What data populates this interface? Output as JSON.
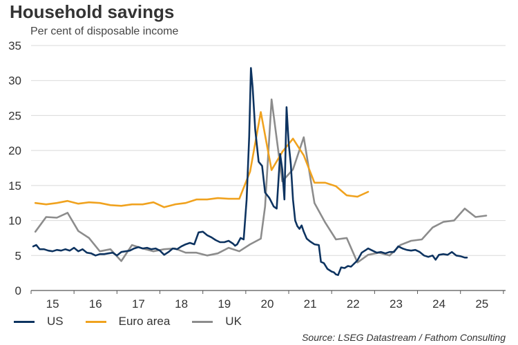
{
  "title": "Household savings",
  "subtitle": "Per cent of disposable income",
  "source": "Source: LSEG Datastream / Fathom Consulting",
  "chart_data": {
    "type": "line",
    "ylim": [
      0,
      35
    ],
    "yticks": [
      0,
      5,
      10,
      15,
      20,
      25,
      30,
      35
    ],
    "xlim": [
      2014.5,
      2025.55
    ],
    "xticks": [
      {
        "label": "15",
        "x": 2015.0
      },
      {
        "label": "16",
        "x": 2016.0
      },
      {
        "label": "17",
        "x": 2017.0
      },
      {
        "label": "18",
        "x": 2018.0
      },
      {
        "label": "19",
        "x": 2019.0
      },
      {
        "label": "20",
        "x": 2020.0
      },
      {
        "label": "21",
        "x": 2021.0
      },
      {
        "label": "22",
        "x": 2022.0
      },
      {
        "label": "23",
        "x": 2023.0
      },
      {
        "label": "24",
        "x": 2024.0
      },
      {
        "label": "25",
        "x": 2025.0
      }
    ],
    "grid": "horizontal",
    "legend_position": "bottom",
    "series": [
      {
        "name": "US",
        "color": "#0d3360",
        "points": [
          [
            2014.55,
            6.3
          ],
          [
            2014.62,
            6.5
          ],
          [
            2014.7,
            5.9
          ],
          [
            2014.8,
            5.9
          ],
          [
            2014.9,
            5.7
          ],
          [
            2015.0,
            5.6
          ],
          [
            2015.1,
            5.8
          ],
          [
            2015.2,
            5.7
          ],
          [
            2015.3,
            5.9
          ],
          [
            2015.4,
            5.7
          ],
          [
            2015.5,
            6.1
          ],
          [
            2015.6,
            5.6
          ],
          [
            2015.7,
            5.9
          ],
          [
            2015.8,
            5.4
          ],
          [
            2015.9,
            5.3
          ],
          [
            2016.0,
            5.0
          ],
          [
            2016.1,
            5.2
          ],
          [
            2016.2,
            5.2
          ],
          [
            2016.3,
            5.3
          ],
          [
            2016.4,
            5.4
          ],
          [
            2016.5,
            5.0
          ],
          [
            2016.6,
            5.5
          ],
          [
            2016.7,
            5.6
          ],
          [
            2016.8,
            5.7
          ],
          [
            2016.9,
            6.0
          ],
          [
            2017.0,
            6.2
          ],
          [
            2017.1,
            6.0
          ],
          [
            2017.2,
            6.1
          ],
          [
            2017.3,
            5.9
          ],
          [
            2017.4,
            6.0
          ],
          [
            2017.5,
            5.7
          ],
          [
            2017.6,
            5.1
          ],
          [
            2017.7,
            5.5
          ],
          [
            2017.8,
            6.0
          ],
          [
            2017.9,
            5.9
          ],
          [
            2018.0,
            6.3
          ],
          [
            2018.1,
            6.6
          ],
          [
            2018.2,
            6.8
          ],
          [
            2018.3,
            6.6
          ],
          [
            2018.4,
            8.3
          ],
          [
            2018.5,
            8.4
          ],
          [
            2018.6,
            7.9
          ],
          [
            2018.7,
            7.6
          ],
          [
            2018.8,
            7.2
          ],
          [
            2018.9,
            6.9
          ],
          [
            2019.0,
            6.9
          ],
          [
            2019.1,
            7.1
          ],
          [
            2019.2,
            6.7
          ],
          [
            2019.25,
            6.4
          ],
          [
            2019.3,
            6.6
          ],
          [
            2019.38,
            7.5
          ],
          [
            2019.45,
            7.3
          ],
          [
            2019.52,
            13.0
          ],
          [
            2019.58,
            22.0
          ],
          [
            2019.62,
            31.8
          ],
          [
            2019.66,
            29.0
          ],
          [
            2019.72,
            23.0
          ],
          [
            2019.8,
            18.4
          ],
          [
            2019.88,
            17.8
          ],
          [
            2019.95,
            14.0
          ],
          [
            2020.05,
            13.2
          ],
          [
            2020.15,
            12.0
          ],
          [
            2020.22,
            11.7
          ],
          [
            2020.3,
            19.5
          ],
          [
            2020.35,
            17.3
          ],
          [
            2020.4,
            13.0
          ],
          [
            2020.45,
            26.2
          ],
          [
            2020.5,
            21.0
          ],
          [
            2020.55,
            18.0
          ],
          [
            2020.6,
            13.0
          ],
          [
            2020.65,
            10.0
          ],
          [
            2020.7,
            9.2
          ],
          [
            2020.75,
            8.8
          ],
          [
            2020.8,
            9.3
          ],
          [
            2020.85,
            8.4
          ],
          [
            2020.92,
            7.4
          ],
          [
            2021.0,
            7.0
          ],
          [
            2021.1,
            6.6
          ],
          [
            2021.2,
            6.5
          ],
          [
            2021.25,
            4.1
          ],
          [
            2021.32,
            3.9
          ],
          [
            2021.4,
            3.1
          ],
          [
            2021.5,
            2.7
          ],
          [
            2021.55,
            2.6
          ],
          [
            2021.6,
            2.3
          ],
          [
            2021.65,
            2.2
          ],
          [
            2021.72,
            3.3
          ],
          [
            2021.8,
            3.2
          ],
          [
            2021.88,
            3.5
          ],
          [
            2021.95,
            3.4
          ],
          [
            2022.0,
            3.7
          ],
          [
            2022.1,
            4.3
          ],
          [
            2022.2,
            5.4
          ],
          [
            2022.3,
            5.8
          ],
          [
            2022.35,
            6.0
          ],
          [
            2022.45,
            5.7
          ],
          [
            2022.55,
            5.4
          ],
          [
            2022.65,
            5.5
          ],
          [
            2022.75,
            5.3
          ],
          [
            2022.85,
            5.5
          ],
          [
            2022.95,
            5.5
          ],
          [
            2023.05,
            6.3
          ],
          [
            2023.15,
            6.0
          ],
          [
            2023.25,
            5.8
          ],
          [
            2023.35,
            5.7
          ],
          [
            2023.45,
            5.8
          ],
          [
            2023.55,
            5.5
          ],
          [
            2023.65,
            5.0
          ],
          [
            2023.75,
            4.8
          ],
          [
            2023.85,
            5.0
          ],
          [
            2023.92,
            4.4
          ],
          [
            2024.0,
            5.1
          ],
          [
            2024.1,
            5.2
          ],
          [
            2024.2,
            5.1
          ],
          [
            2024.3,
            5.5
          ],
          [
            2024.4,
            5.0
          ],
          [
            2024.5,
            4.9
          ],
          [
            2024.6,
            4.7
          ],
          [
            2024.65,
            4.7
          ]
        ]
      },
      {
        "name": "Euro area",
        "color": "#f0a21e",
        "points": [
          [
            2014.6,
            12.5
          ],
          [
            2014.85,
            12.3
          ],
          [
            2015.1,
            12.5
          ],
          [
            2015.35,
            12.8
          ],
          [
            2015.6,
            12.4
          ],
          [
            2015.85,
            12.6
          ],
          [
            2016.1,
            12.5
          ],
          [
            2016.35,
            12.2
          ],
          [
            2016.6,
            12.1
          ],
          [
            2016.85,
            12.3
          ],
          [
            2017.1,
            12.3
          ],
          [
            2017.35,
            12.6
          ],
          [
            2017.6,
            11.9
          ],
          [
            2017.85,
            12.3
          ],
          [
            2018.1,
            12.5
          ],
          [
            2018.35,
            13.0
          ],
          [
            2018.6,
            13.0
          ],
          [
            2018.85,
            13.2
          ],
          [
            2019.1,
            13.1
          ],
          [
            2019.35,
            13.1
          ],
          [
            2019.6,
            17.0
          ],
          [
            2019.85,
            25.5
          ],
          [
            2020.1,
            17.2
          ],
          [
            2020.35,
            19.8
          ],
          [
            2020.6,
            21.7
          ],
          [
            2020.85,
            19.3
          ],
          [
            2021.1,
            15.4
          ],
          [
            2021.35,
            15.4
          ],
          [
            2021.6,
            14.9
          ],
          [
            2021.85,
            13.6
          ],
          [
            2022.1,
            13.4
          ],
          [
            2022.35,
            14.1
          ]
        ]
      },
      {
        "name": "UK",
        "color": "#8c8c8c",
        "points": [
          [
            2014.6,
            8.4
          ],
          [
            2014.85,
            10.5
          ],
          [
            2015.1,
            10.4
          ],
          [
            2015.35,
            11.1
          ],
          [
            2015.6,
            8.5
          ],
          [
            2015.85,
            7.5
          ],
          [
            2016.1,
            5.6
          ],
          [
            2016.35,
            5.9
          ],
          [
            2016.6,
            4.2
          ],
          [
            2016.85,
            6.5
          ],
          [
            2017.1,
            6.0
          ],
          [
            2017.35,
            5.6
          ],
          [
            2017.6,
            5.9
          ],
          [
            2017.85,
            6.0
          ],
          [
            2018.1,
            5.4
          ],
          [
            2018.35,
            5.4
          ],
          [
            2018.6,
            5.0
          ],
          [
            2018.85,
            5.3
          ],
          [
            2019.1,
            6.1
          ],
          [
            2019.35,
            5.6
          ],
          [
            2019.6,
            6.6
          ],
          [
            2019.85,
            7.4
          ],
          [
            2019.95,
            12.0
          ],
          [
            2020.1,
            27.3
          ],
          [
            2020.35,
            15.6
          ],
          [
            2020.6,
            17.3
          ],
          [
            2020.85,
            21.9
          ],
          [
            2021.1,
            12.5
          ],
          [
            2021.35,
            9.7
          ],
          [
            2021.6,
            7.3
          ],
          [
            2021.85,
            7.5
          ],
          [
            2022.1,
            4.0
          ],
          [
            2022.35,
            5.1
          ],
          [
            2022.6,
            5.4
          ],
          [
            2022.85,
            5.0
          ],
          [
            2023.1,
            6.5
          ],
          [
            2023.35,
            7.1
          ],
          [
            2023.6,
            7.3
          ],
          [
            2023.85,
            9.0
          ],
          [
            2024.1,
            9.8
          ],
          [
            2024.35,
            10.0
          ],
          [
            2024.6,
            11.7
          ],
          [
            2024.85,
            10.5
          ],
          [
            2025.1,
            10.7
          ]
        ]
      }
    ]
  }
}
